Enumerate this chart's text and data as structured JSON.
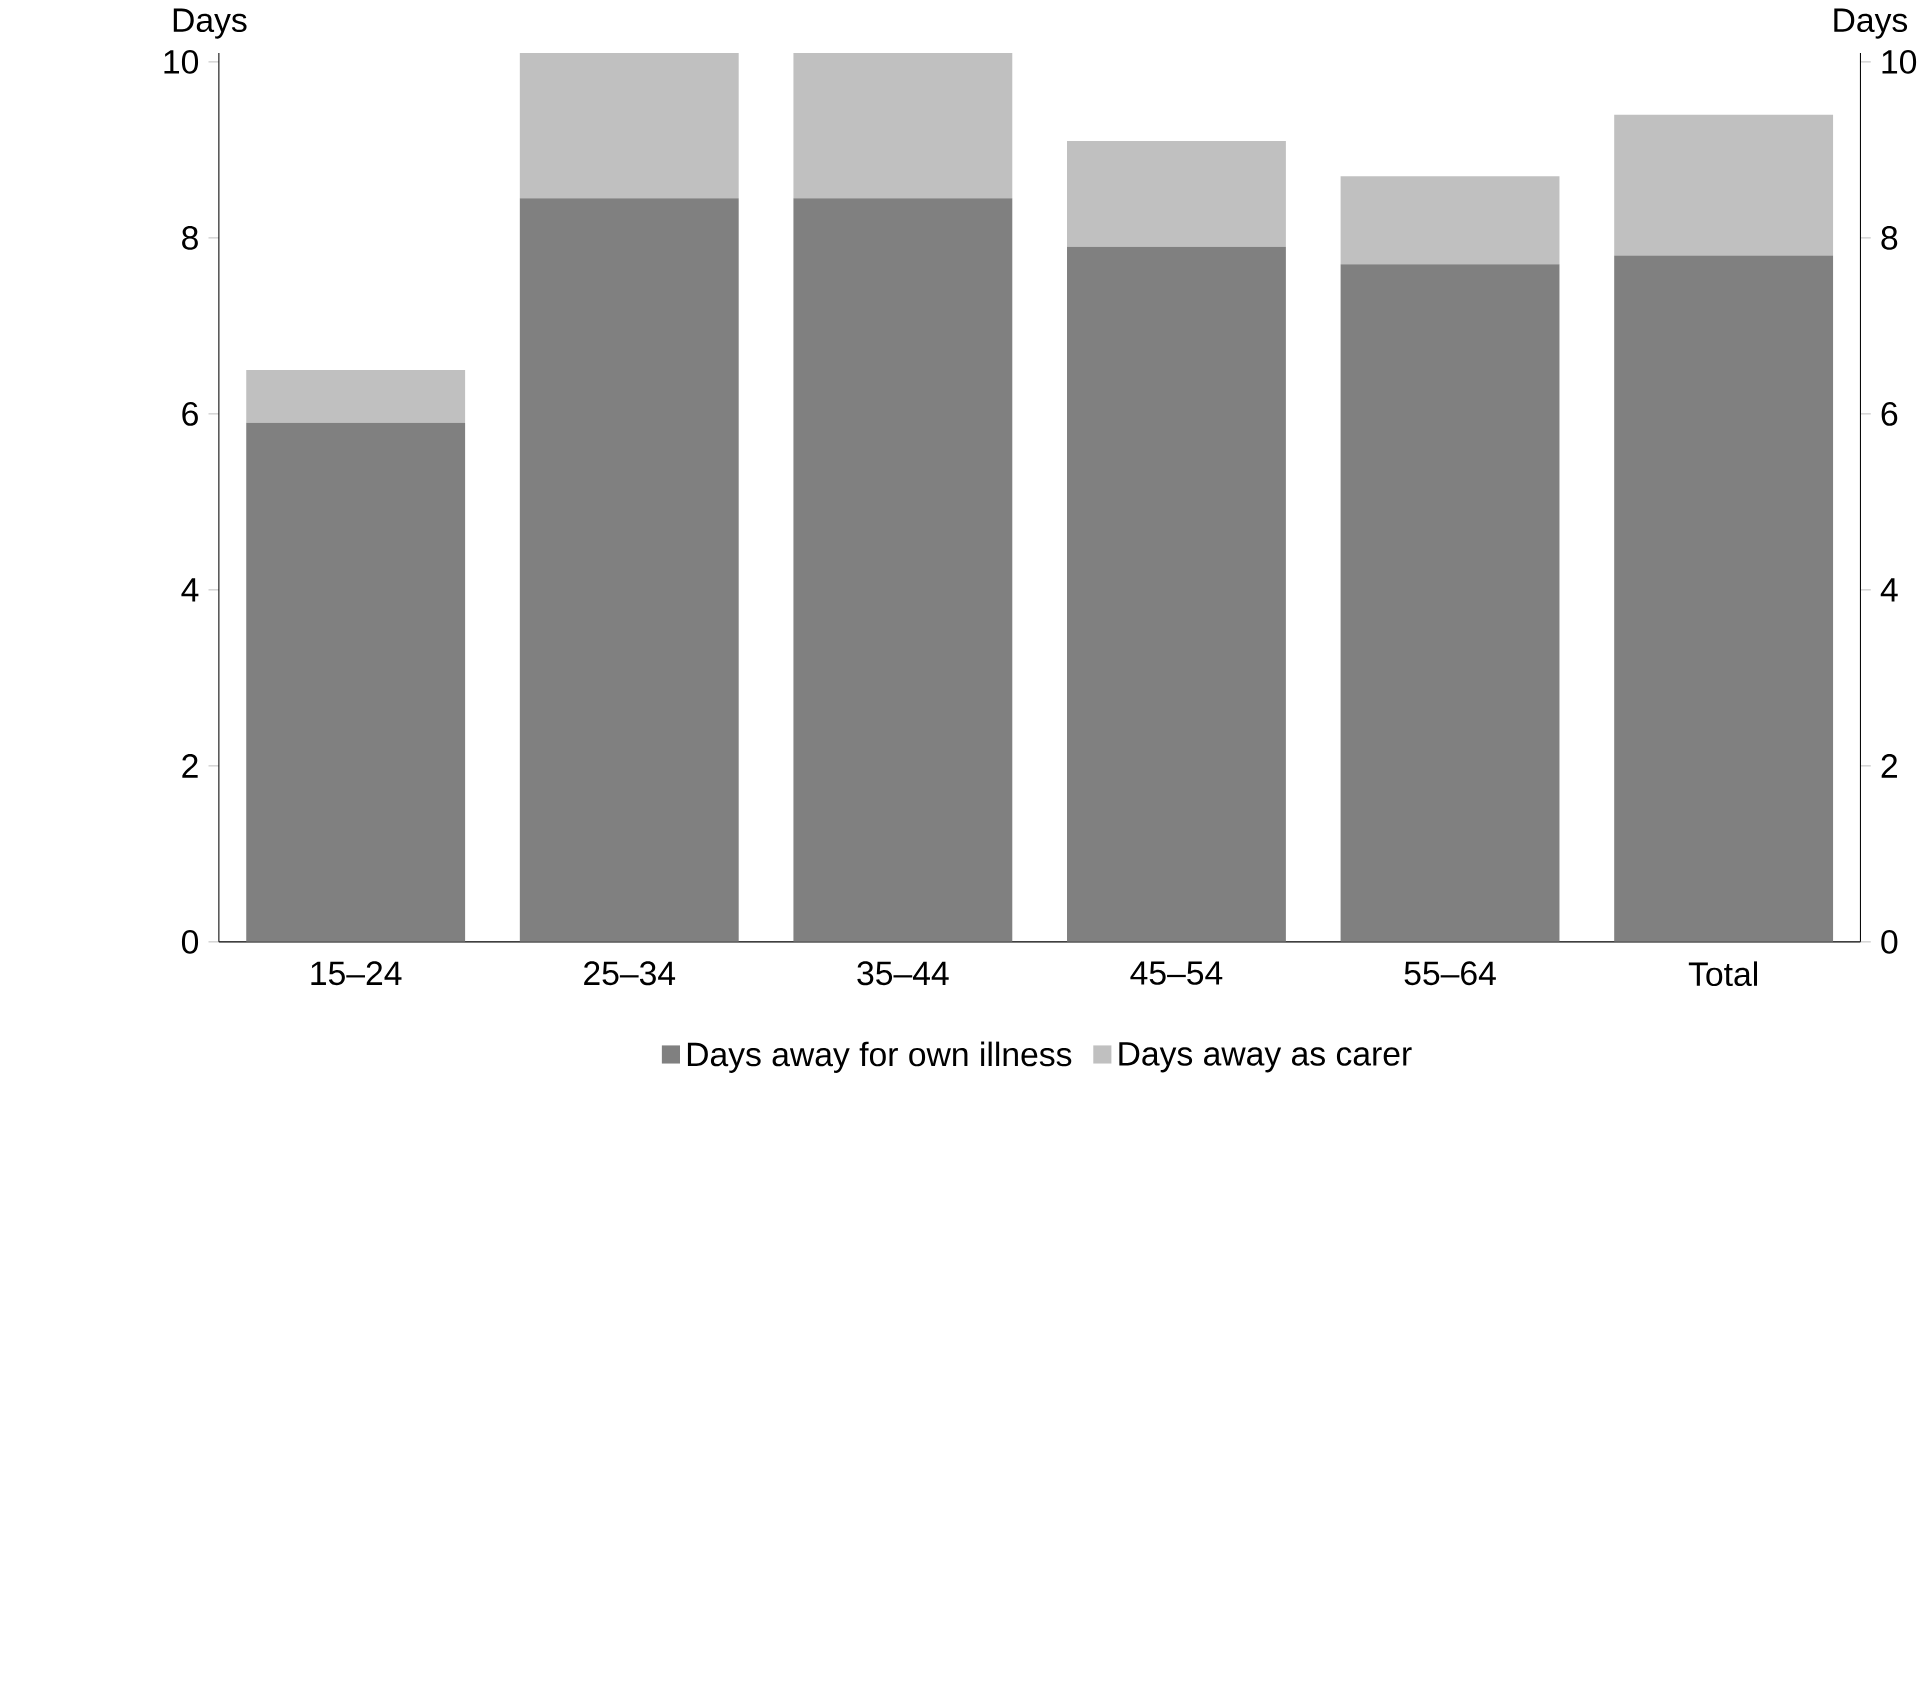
{
  "chart_data": {
    "type": "bar",
    "stacked": true,
    "ylabel": "Days",
    "y2label": "Days",
    "categories": [
      "15–24",
      "25–34",
      "35–44",
      "45–54",
      "55–64",
      "Total"
    ],
    "series": [
      {
        "name": "Days away for own illness",
        "color": "#808080",
        "values": [
          5.9,
          8.45,
          8.45,
          7.9,
          7.7,
          7.8
        ]
      },
      {
        "name": "Days away as carer",
        "color": "#c0c0c0",
        "values": [
          0.6,
          1.65,
          1.65,
          1.2,
          1.0,
          1.6
        ]
      }
    ],
    "ylim": [
      0,
      10.1
    ],
    "yticks": [
      0,
      2,
      4,
      6,
      8,
      10
    ],
    "y2lim": [
      0,
      10.1
    ],
    "y2ticks": [
      0,
      2,
      4,
      6,
      8,
      10
    ],
    "legend": "bottom",
    "grid": false
  }
}
